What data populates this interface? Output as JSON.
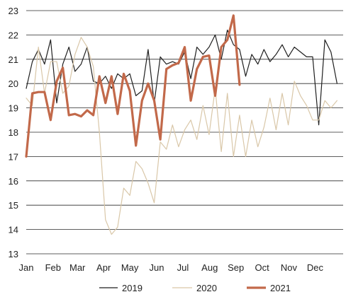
{
  "chart_data": {
    "type": "line",
    "title": "",
    "xlabel": "",
    "ylabel": "",
    "ylim": [
      13,
      23
    ],
    "y_ticks": [
      13,
      14,
      15,
      16,
      17,
      18,
      19,
      20,
      21,
      22,
      23
    ],
    "x_ticks": [
      "Jan",
      "Feb",
      "Mar",
      "Apr",
      "May",
      "Jun",
      "Jul",
      "Aug",
      "Sep",
      "Oct",
      "Nov",
      "Dec"
    ],
    "x_unit": "week of year",
    "grid": "horizontal",
    "legend_position": "bottom",
    "series": [
      {
        "name": "2019",
        "color": "#1f1f1f",
        "stroke": "thin",
        "x": [
          1,
          2,
          3,
          4,
          5,
          6,
          7,
          8,
          9,
          10,
          11,
          12,
          13,
          14,
          15,
          16,
          17,
          18,
          19,
          20,
          21,
          22,
          23,
          24,
          25,
          26,
          27,
          28,
          29,
          30,
          31,
          32,
          33,
          34,
          35,
          36,
          37,
          38,
          39,
          40,
          41,
          42,
          43,
          44,
          45,
          46,
          47,
          48,
          49,
          50,
          51,
          52,
          53
        ],
        "values": [
          19.8,
          20.9,
          21.4,
          20.8,
          21.8,
          19.2,
          20.8,
          21.5,
          20.5,
          20.8,
          21.5,
          20.1,
          20.0,
          20.3,
          19.8,
          20.4,
          20.2,
          20.4,
          19.5,
          19.7,
          21.4,
          19.2,
          21.1,
          20.8,
          20.9,
          20.8,
          21.3,
          20.2,
          21.5,
          21.2,
          21.5,
          22.0,
          21.0,
          22.2,
          21.6,
          21.4,
          20.3,
          21.2,
          20.8,
          21.4,
          20.9,
          21.2,
          21.6,
          21.1,
          21.5,
          21.3,
          21.1,
          21.1,
          18.3,
          21.8,
          21.3,
          20.0,
          null
        ]
      },
      {
        "name": "2020",
        "color": "#d9c7a8",
        "stroke": "thin",
        "x": [
          1,
          2,
          3,
          4,
          5,
          6,
          7,
          8,
          9,
          10,
          11,
          12,
          13,
          14,
          15,
          16,
          17,
          18,
          19,
          20,
          21,
          22,
          23,
          24,
          25,
          26,
          27,
          28,
          29,
          30,
          31,
          32,
          33,
          34,
          35,
          36,
          37,
          38,
          39,
          40,
          41,
          42,
          43,
          44,
          45,
          46,
          47,
          48,
          49,
          50,
          51,
          52,
          53
        ],
        "values": [
          19.4,
          19.1,
          21.5,
          19.6,
          20.9,
          20.9,
          19.6,
          19.9,
          21.2,
          21.9,
          21.5,
          20.7,
          18.0,
          14.4,
          13.8,
          14.1,
          15.7,
          15.4,
          16.8,
          16.5,
          15.9,
          15.1,
          17.6,
          17.3,
          18.3,
          17.4,
          18.1,
          18.5,
          17.7,
          19.1,
          17.9,
          19.8,
          17.2,
          19.6,
          17.0,
          18.7,
          17.0,
          18.5,
          17.4,
          18.2,
          19.4,
          18.1,
          19.6,
          18.3,
          20.1,
          19.5,
          19.1,
          18.5,
          18.5,
          19.3,
          19.0,
          19.3,
          null
        ]
      },
      {
        "name": "2021",
        "color": "#c2694a",
        "stroke": "thick",
        "x": [
          1,
          2,
          3,
          4,
          5,
          6,
          7,
          8,
          9,
          10,
          11,
          12,
          13,
          14,
          15,
          16,
          17,
          18,
          19,
          20,
          21,
          22,
          23,
          24,
          25,
          26,
          27,
          28,
          29,
          30,
          31,
          32,
          33,
          34,
          35,
          36
        ],
        "values": [
          17.0,
          19.6,
          19.65,
          19.65,
          18.5,
          20.1,
          20.65,
          18.7,
          18.75,
          18.65,
          18.9,
          18.7,
          20.3,
          19.2,
          20.3,
          18.75,
          20.4,
          19.7,
          17.45,
          19.3,
          20.0,
          19.3,
          17.7,
          20.6,
          20.75,
          20.85,
          21.5,
          19.3,
          20.6,
          21.1,
          21.15,
          19.5,
          21.5,
          21.8,
          22.8,
          19.95
        ]
      }
    ]
  }
}
